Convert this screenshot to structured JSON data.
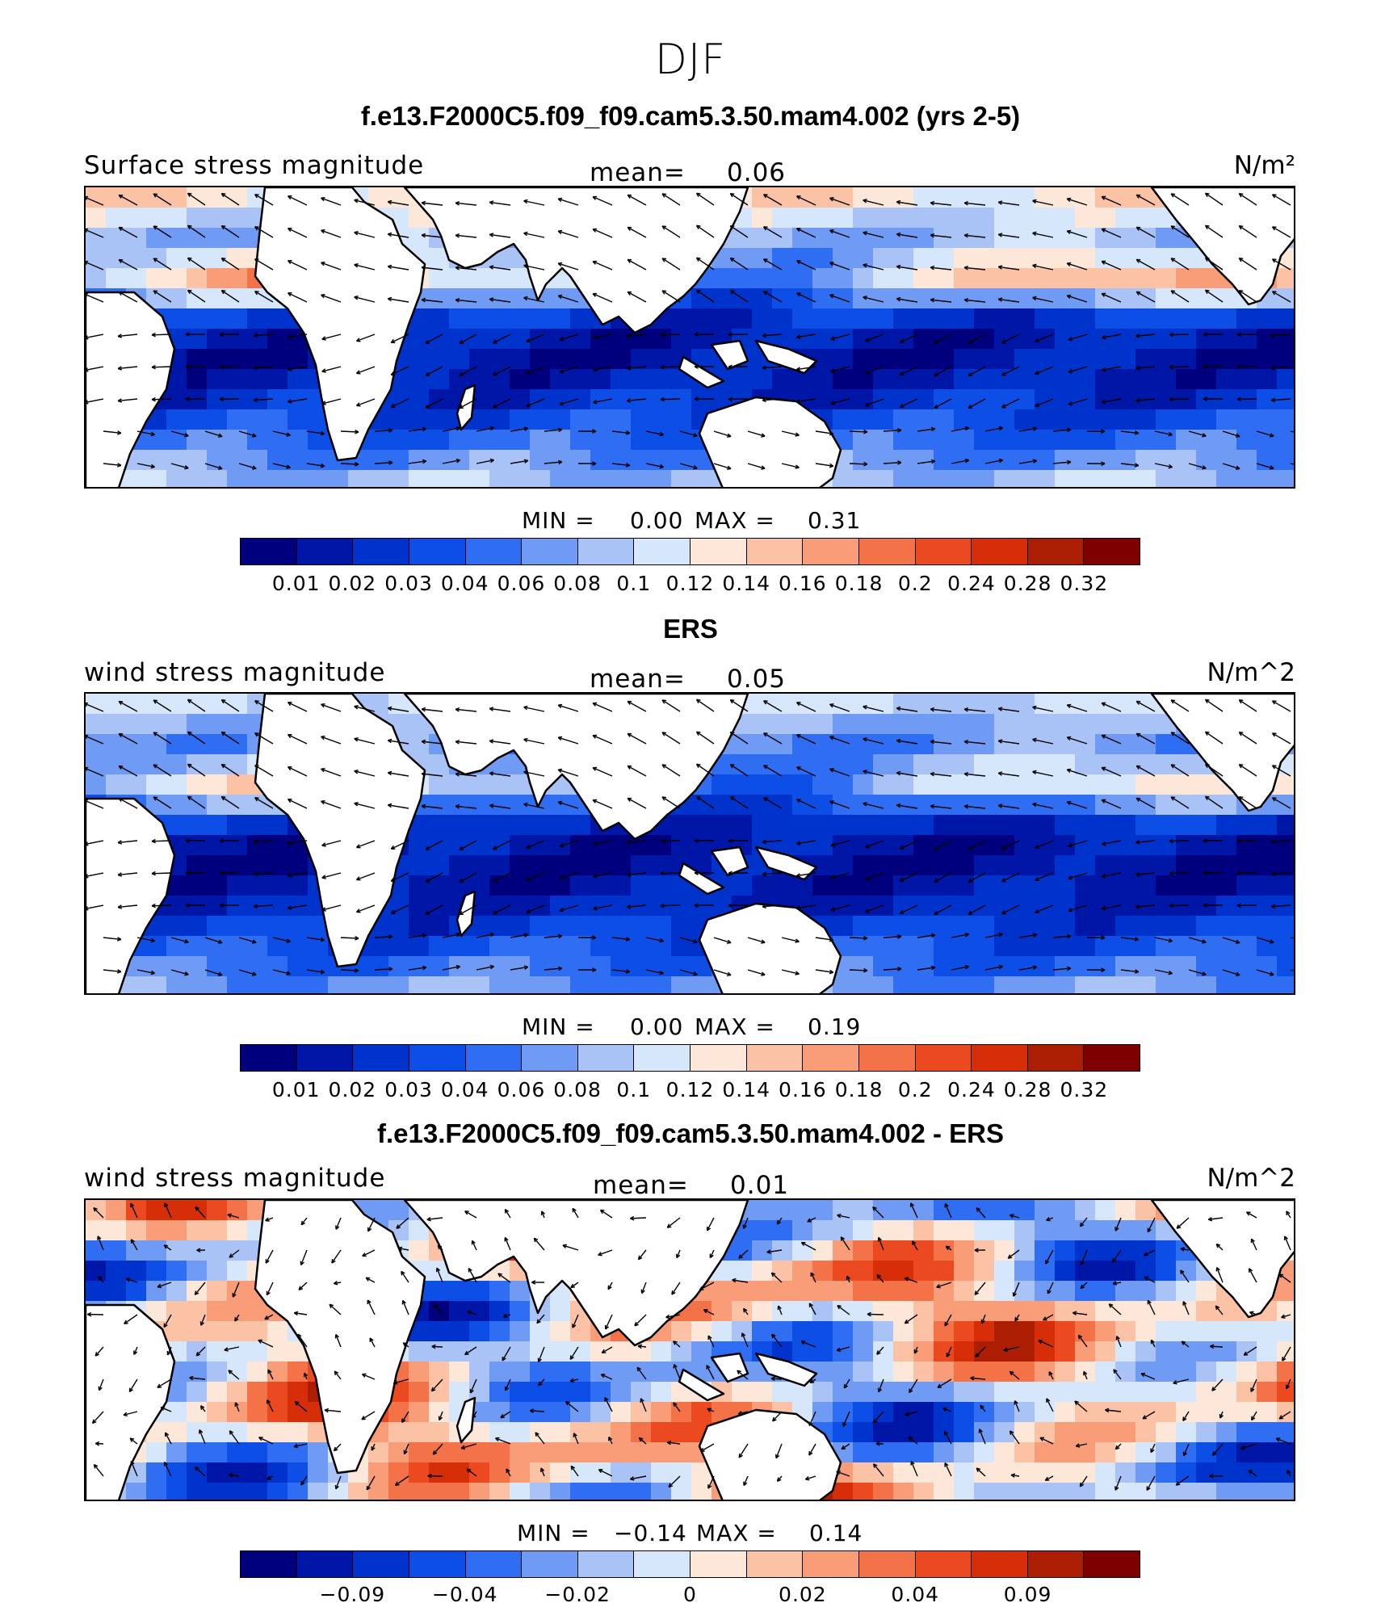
{
  "figure_title": "DJF",
  "colors": [
    "#00007f",
    "#0016a6",
    "#0033cc",
    "#0d4ee6",
    "#2f6df2",
    "#6f9bf5",
    "#a9c3f7",
    "#d7e7fb",
    "#fde7d9",
    "#fcc2a6",
    "#f99c78",
    "#f47248",
    "#eb4a20",
    "#d52e08",
    "#ac1e04",
    "#7f0000"
  ],
  "panels": [
    {
      "title": "f.e13.F2000C5.f09_f09.cam5.3.50.mam4.002 (yrs 2-5)",
      "left_label": "Surface stress magnitude",
      "mean_label": "mean=",
      "mean_value": "0.06",
      "units": "N/m²",
      "min_label": "MIN =",
      "min_value": "0.00",
      "max_label": "MAX =",
      "max_value": "0.31",
      "ticks": [
        "0.01",
        "0.02",
        "0.03",
        "0.04",
        "0.06",
        "0.08",
        "0.1",
        "0.12",
        "0.14",
        "0.16",
        "0.18",
        "0.2",
        "0.24",
        "0.28",
        "0.32"
      ],
      "field": "model"
    },
    {
      "title": "ERS",
      "left_label": "wind stress magnitude",
      "mean_label": "mean=",
      "mean_value": "0.05",
      "units": "N/m^2",
      "min_label": "MIN =",
      "min_value": "0.00",
      "max_label": "MAX =",
      "max_value": "0.19",
      "ticks": [
        "0.01",
        "0.02",
        "0.03",
        "0.04",
        "0.06",
        "0.08",
        "0.1",
        "0.12",
        "0.14",
        "0.16",
        "0.18",
        "0.2",
        "0.24",
        "0.28",
        "0.32"
      ],
      "field": "obs"
    },
    {
      "title": "f.e13.F2000C5.f09_f09.cam5.3.50.mam4.002 - ERS",
      "left_label": "wind stress magnitude",
      "mean_label": "mean=",
      "mean_value": "0.01",
      "units": "N/m^2",
      "min_label": "MIN =",
      "min_value": "−0.14",
      "max_label": "MAX =",
      "max_value": "0.14",
      "ticks": [
        "−0.09",
        "−0.04",
        "−0.02",
        "0",
        "0.02",
        "0.04",
        "0.09"
      ],
      "field": "diff"
    }
  ]
}
